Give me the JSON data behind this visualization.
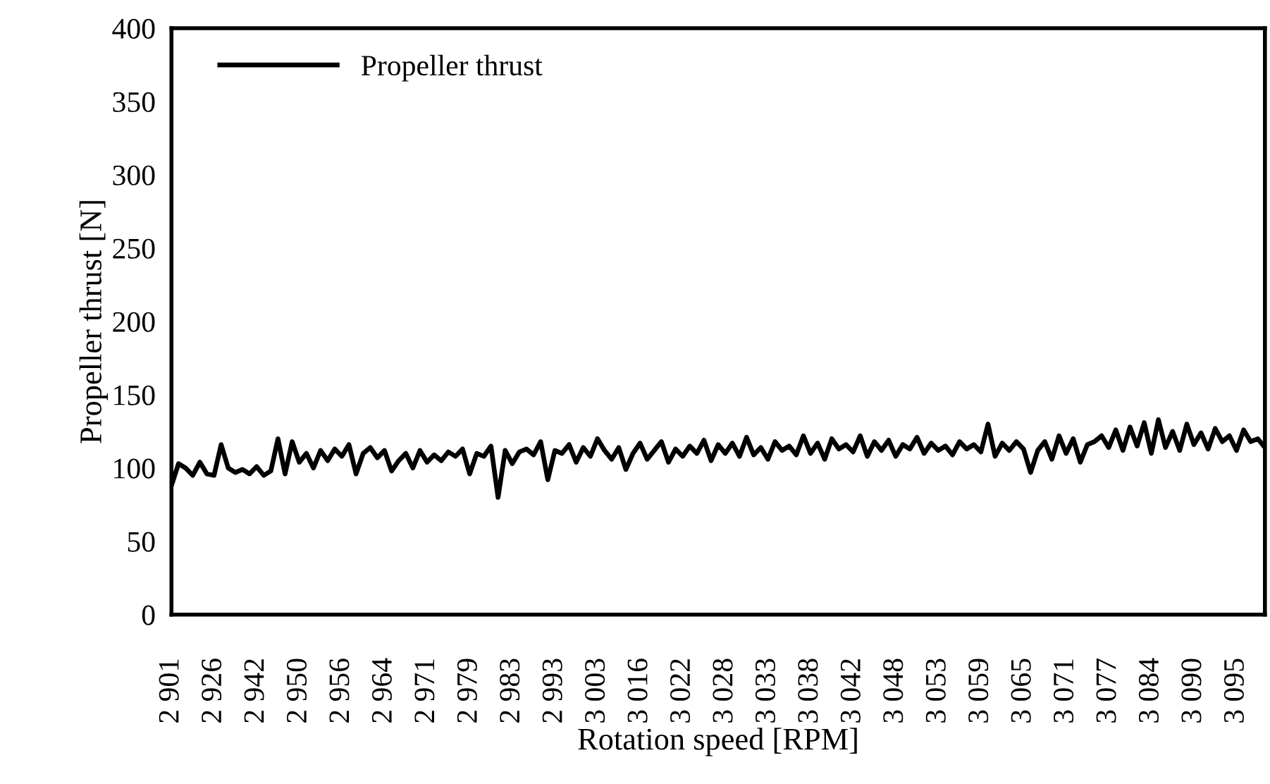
{
  "chart_data": {
    "type": "line",
    "xlabel": "Rotation speed [RPM]",
    "ylabel": "Propeller thrust [N]",
    "categories": [
      "2 901",
      null,
      null,
      null,
      null,
      null,
      "2 926",
      null,
      null,
      null,
      null,
      null,
      "2 942",
      null,
      null,
      null,
      null,
      null,
      "2 950",
      null,
      null,
      null,
      null,
      null,
      "2 956",
      null,
      null,
      null,
      null,
      null,
      "2 964",
      null,
      null,
      null,
      null,
      null,
      "2 971",
      null,
      null,
      null,
      null,
      null,
      "2 979",
      null,
      null,
      null,
      null,
      null,
      "2 983",
      null,
      null,
      null,
      null,
      null,
      "2 993",
      null,
      null,
      null,
      null,
      null,
      "3 003",
      null,
      null,
      null,
      null,
      null,
      "3 016",
      null,
      null,
      null,
      null,
      null,
      "3 022",
      null,
      null,
      null,
      null,
      null,
      "3 028",
      null,
      null,
      null,
      null,
      null,
      "3 033",
      null,
      null,
      null,
      null,
      null,
      "3 038",
      null,
      null,
      null,
      null,
      null,
      "3 042",
      null,
      null,
      null,
      null,
      null,
      "3 048",
      null,
      null,
      null,
      null,
      null,
      "3 053",
      null,
      null,
      null,
      null,
      null,
      "3 059",
      null,
      null,
      null,
      null,
      null,
      "3 065",
      null,
      null,
      null,
      null,
      null,
      "3 071",
      null,
      null,
      null,
      null,
      null,
      "3 077",
      null,
      null,
      null,
      null,
      null,
      "3 084",
      null,
      null,
      null,
      null,
      null,
      "3 090",
      null,
      null,
      null,
      null,
      null,
      "3 095",
      null,
      null,
      null,
      null
    ],
    "series": [
      {
        "name": "Propeller thrust",
        "color": "#000000",
        "values": [
          88,
          103,
          100,
          95,
          104,
          96,
          95,
          116,
          100,
          97,
          99,
          96,
          101,
          95,
          98,
          120,
          96,
          118,
          104,
          110,
          100,
          112,
          105,
          113,
          108,
          116,
          96,
          110,
          114,
          107,
          112,
          98,
          105,
          110,
          100,
          112,
          104,
          109,
          105,
          111,
          108,
          113,
          96,
          110,
          108,
          115,
          80,
          112,
          103,
          111,
          113,
          109,
          118,
          92,
          112,
          110,
          116,
          104,
          114,
          108,
          120,
          112,
          106,
          114,
          99,
          110,
          117,
          106,
          112,
          118,
          104,
          113,
          108,
          115,
          110,
          119,
          105,
          116,
          110,
          117,
          108,
          121,
          109,
          114,
          106,
          118,
          112,
          115,
          109,
          122,
          110,
          117,
          106,
          120,
          113,
          116,
          111,
          122,
          108,
          118,
          112,
          119,
          108,
          116,
          113,
          121,
          110,
          117,
          112,
          115,
          109,
          118,
          113,
          116,
          111,
          130,
          108,
          117,
          112,
          118,
          113,
          97,
          112,
          118,
          106,
          122,
          110,
          120,
          104,
          116,
          118,
          122,
          114,
          126,
          112,
          128,
          115,
          131,
          110,
          133,
          114,
          125,
          112,
          130,
          116,
          124,
          113,
          127,
          118,
          122,
          112,
          126,
          118,
          120,
          114
        ]
      }
    ],
    "ylim": [
      0,
      400
    ],
    "yticks": [
      0,
      50,
      100,
      150,
      200,
      250,
      300,
      350,
      400
    ],
    "grid": false,
    "legend": "top left",
    "marker": "none",
    "line_style": "solid"
  }
}
